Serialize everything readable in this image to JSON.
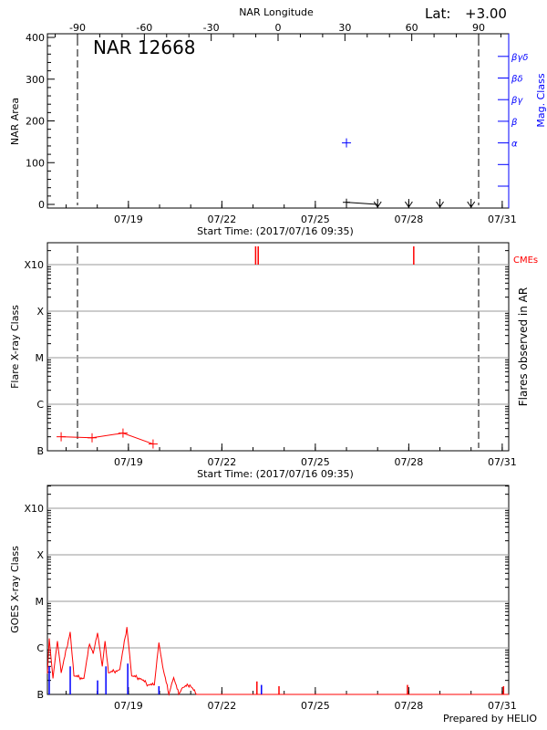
{
  "colors": {
    "axis": "#000000",
    "mag_class": "#0000ff",
    "flare": "#ff0000",
    "cme": "#ff0000",
    "goes_long": "#ff0000",
    "goes_short": "#0000ff",
    "grid": "#999999"
  },
  "header": {
    "lat_label": "Lat:",
    "lat_value": "+3.00",
    "longitude_axis_label": "NAR Longitude",
    "region_title": "NAR 12668"
  },
  "footer": {
    "credit": "Prepared by HELIO"
  },
  "chart_data": [
    {
      "type": "line",
      "panel": "nar-area",
      "xlabel": "Start Time: (2017/07/16 09:35)",
      "ylabel": "NAR Area",
      "y2label": "Mag. Class",
      "x2label": "NAR Longitude",
      "xlim": [
        "2017-07-16T09:35",
        "2017-07-31T05:00"
      ],
      "ylim": [
        0,
        410
      ],
      "x_tick_labels": [
        "07/19",
        "07/22",
        "07/25",
        "07/28",
        "07/31"
      ],
      "x_ticks": [
        "2017-07-19T00:00",
        "2017-07-22T00:00",
        "2017-07-25T00:00",
        "2017-07-28T00:00",
        "2017-07-31T00:00"
      ],
      "y_ticks": [
        0,
        100,
        200,
        300,
        400
      ],
      "longitude_ticks": [
        -90,
        -60,
        -30,
        0,
        30,
        60,
        90
      ],
      "limb_longitudes": [
        -90,
        90
      ],
      "mag_class_labels": [
        "α",
        "β",
        "βγ",
        "βδ",
        "βγδ"
      ],
      "area_points": [
        {
          "t": "2017-07-26T00:00",
          "area": 5,
          "marker": "plus"
        },
        {
          "t": "2017-07-27T00:00",
          "area": 0,
          "marker": "arrow-down"
        },
        {
          "t": "2017-07-28T00:00",
          "area": 0,
          "marker": "arrow-down"
        },
        {
          "t": "2017-07-29T00:00",
          "area": 0,
          "marker": "arrow-down"
        },
        {
          "t": "2017-07-30T00:00",
          "area": 0,
          "marker": "arrow-down"
        }
      ],
      "mag_class_points": [
        {
          "t": "2017-07-26T00:00",
          "class": "α"
        }
      ]
    },
    {
      "type": "line",
      "panel": "flare-class",
      "xlabel": "Start Time: (2017/07/16 09:35)",
      "ylabel": "Flare X-ray Class",
      "y2label": "Flares observed in AR",
      "cme_label": "CMEs",
      "y_scale": "log",
      "y_tick_labels": [
        "B",
        "C",
        "M",
        "X",
        "X10"
      ],
      "y_tick_values": [
        1e-07,
        1e-06,
        1e-05,
        0.0001,
        0.001
      ],
      "grid": true,
      "flares": [
        {
          "t": "2017-07-16T20:10",
          "flux": 2e-07
        },
        {
          "t": "2017-07-17T20:00",
          "flux": 1.9e-07
        },
        {
          "t": "2017-07-18T19:50",
          "flux": 2.4e-07
        },
        {
          "t": "2017-07-19T19:00",
          "flux": 1.4e-07
        }
      ],
      "cmes": [
        "2017-07-23T02:00",
        "2017-07-23T04:00",
        "2017-07-28T03:50"
      ]
    },
    {
      "type": "line",
      "panel": "goes",
      "ylabel": "GOES X-ray Class",
      "y_scale": "log",
      "y_tick_labels": [
        "B",
        "C",
        "M",
        "X",
        "X10"
      ],
      "y_tick_values": [
        1e-07,
        1e-06,
        1e-05,
        0.0001,
        0.001
      ],
      "grid": true,
      "long_channel": [
        {
          "t": "2017-07-16T09:35",
          "flux": 2.8e-07
        },
        {
          "t": "2017-07-16T11:00",
          "flux": 1.6e-06
        },
        {
          "t": "2017-07-16T13:50",
          "flux": 2.2e-07
        },
        {
          "t": "2017-07-16T17:20",
          "flux": 1.4e-06
        },
        {
          "t": "2017-07-16T20:10",
          "flux": 2.9e-07
        },
        {
          "t": "2017-07-17T03:10",
          "flux": 2.2e-06
        },
        {
          "t": "2017-07-17T06:00",
          "flux": 2.5e-07
        },
        {
          "t": "2017-07-17T13:40",
          "flux": 2.2e-07
        },
        {
          "t": "2017-07-17T18:00",
          "flux": 1.2e-06
        },
        {
          "t": "2017-07-17T20:50",
          "flux": 7.5e-07
        },
        {
          "t": "2017-07-18T00:15",
          "flux": 2.1e-06
        },
        {
          "t": "2017-07-18T03:50",
          "flux": 4e-07
        },
        {
          "t": "2017-07-18T06:00",
          "flux": 1.4e-06
        },
        {
          "t": "2017-07-18T08:40",
          "flux": 2.9e-07
        },
        {
          "t": "2017-07-18T17:20",
          "flux": 3.4e-07
        },
        {
          "t": "2017-07-18T22:50",
          "flux": 2.8e-06
        },
        {
          "t": "2017-07-19T02:30",
          "flux": 2.5e-07
        },
        {
          "t": "2017-07-19T09:20",
          "flux": 2.2e-07
        },
        {
          "t": "2017-07-19T15:10",
          "flux": 1.6e-07
        },
        {
          "t": "2017-07-19T20:00",
          "flux": 1.6e-07
        },
        {
          "t": "2017-07-19T23:30",
          "flux": 1.3e-06
        },
        {
          "t": "2017-07-20T02:20",
          "flux": 4e-07
        },
        {
          "t": "2017-07-20T07:10",
          "flux": 1e-07
        },
        {
          "t": "2017-07-20T10:50",
          "flux": 2.3e-07
        },
        {
          "t": "2017-07-20T14:50",
          "flux": 1e-07
        },
        {
          "t": "2017-07-20T17:50",
          "flux": 1.4e-07
        },
        {
          "t": "2017-07-20T23:20",
          "flux": 1.6e-07
        },
        {
          "t": "2017-07-21T04:20",
          "flux": 1e-07
        },
        {
          "t": "2017-07-31T05:00",
          "flux": 1e-07
        }
      ],
      "long_channel_spikes": [
        {
          "t": "2017-07-23T03:00",
          "flux": 1.9e-07
        },
        {
          "t": "2017-07-23T20:00",
          "flux": 1.5e-07
        },
        {
          "t": "2017-07-27T23:00",
          "flux": 1.6e-07
        },
        {
          "t": "2017-07-31T01:00",
          "flux": 1.5e-07
        }
      ],
      "short_channel_spikes": [
        {
          "t": "2017-07-16T11:00",
          "flux": 4e-07
        },
        {
          "t": "2017-07-17T03:10",
          "flux": 4e-07
        },
        {
          "t": "2017-07-18T00:15",
          "flux": 2e-07
        },
        {
          "t": "2017-07-18T06:40",
          "flux": 4e-07
        },
        {
          "t": "2017-07-18T23:30",
          "flux": 4.6e-07
        },
        {
          "t": "2017-07-19T23:30",
          "flux": 1.5e-07
        },
        {
          "t": "2017-07-23T06:30",
          "flux": 1.6e-07
        }
      ]
    }
  ]
}
